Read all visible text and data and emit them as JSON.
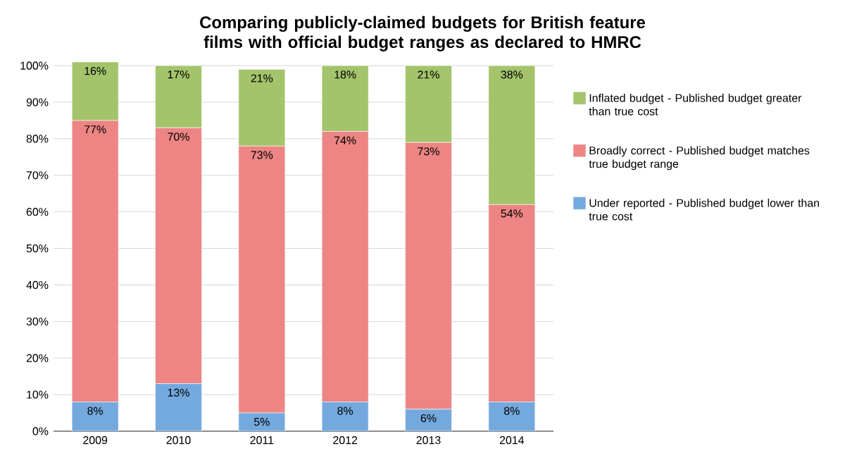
{
  "chart_data": {
    "type": "bar",
    "stacked": true,
    "title": "Comparing publicly-claimed budgets for British feature films with official budget ranges as declared to HMRC",
    "categories": [
      "2009",
      "2010",
      "2011",
      "2012",
      "2013",
      "2014"
    ],
    "series": [
      {
        "name": "Under reported - Published budget lower than true cost",
        "color": "#74a9de",
        "values": [
          8,
          13,
          5,
          8,
          6,
          8
        ],
        "value_labels": [
          "8%",
          "13%",
          "5%",
          "8%",
          "6%",
          "8%"
        ]
      },
      {
        "name": "Broadly correct - Published budget matches true budget range",
        "color": "#ec8584",
        "values": [
          77,
          70,
          73,
          74,
          73,
          54
        ],
        "value_labels": [
          "77%",
          "70%",
          "73%",
          "74%",
          "73%",
          "54%"
        ]
      },
      {
        "name": "Inflated budget - Published budget greater than true cost",
        "color": "#a3c46a",
        "values": [
          16,
          17,
          21,
          18,
          21,
          38
        ],
        "value_labels": [
          "16%",
          "17%",
          "21%",
          "18%",
          "21%",
          "38%"
        ]
      }
    ],
    "ylim": [
      0,
      101
    ],
    "yticks": [
      {
        "value": 0,
        "label": "0%"
      },
      {
        "value": 10,
        "label": "10%"
      },
      {
        "value": 20,
        "label": "20%"
      },
      {
        "value": 30,
        "label": "30%"
      },
      {
        "value": 40,
        "label": "40%"
      },
      {
        "value": 50,
        "label": "50%"
      },
      {
        "value": 60,
        "label": "60%"
      },
      {
        "value": 70,
        "label": "70%"
      },
      {
        "value": 80,
        "label": "80%"
      },
      {
        "value": 90,
        "label": "90%"
      },
      {
        "value": 100,
        "label": "100%"
      }
    ],
    "grid": "y",
    "legend": "right"
  }
}
